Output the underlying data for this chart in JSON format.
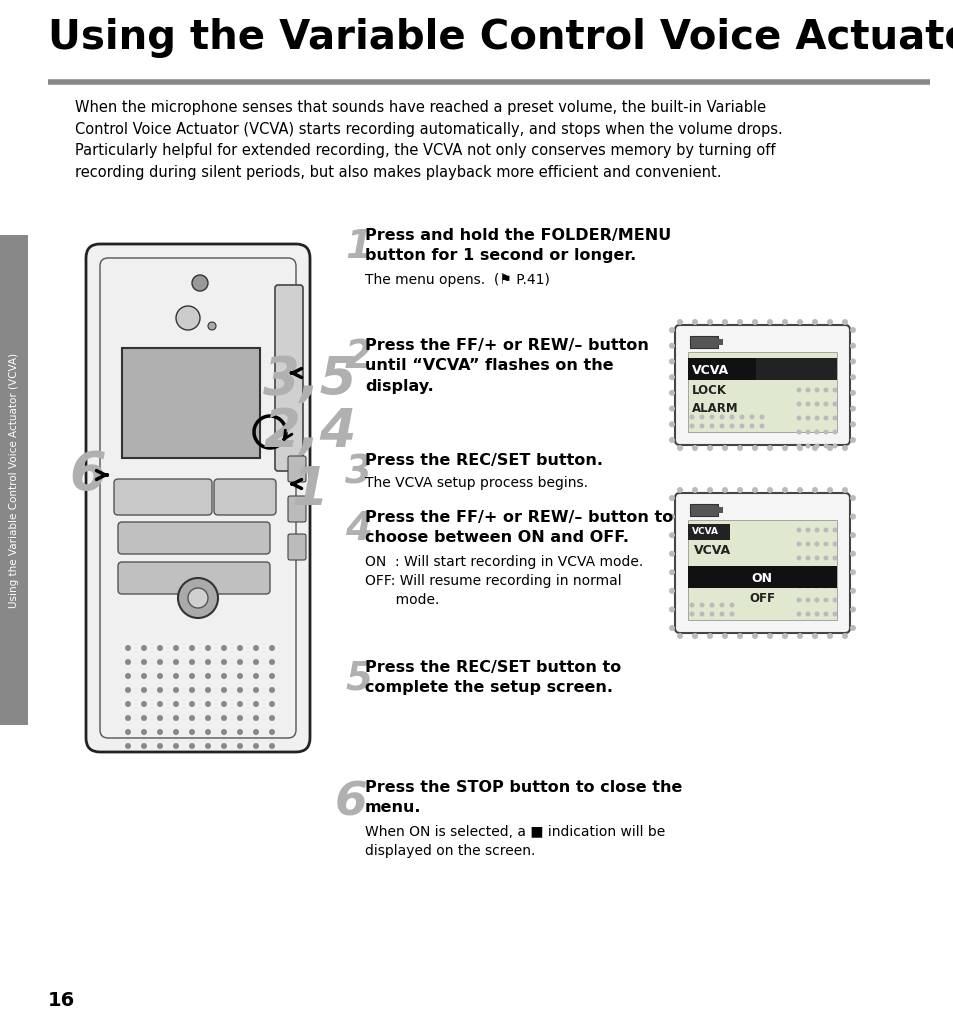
{
  "title": "Using the Variable Control Voice Actuator (VCVA)",
  "hr_color": "#888888",
  "bg_color": "#ffffff",
  "sidebar_color": "#888888",
  "sidebar_text": "Using the Variable Control Voice Actuator (VCVA)",
  "page_number": "16",
  "intro_text": "When the microphone senses that sounds have reached a preset volume, the built-in Variable\nControl Voice Actuator (VCVA) starts recording automatically, and stops when the volume drops.\nParticularly helpful for extended recording, the VCVA not only conserves memory by turning off\nrecording during silent periods, but also makes playback more efficient and convenient.",
  "step1_bold": "Press and hold the FOLDER/MENU\nbutton for 1 second or longer.",
  "step1_reg": "The menu opens.  (⚑ P.41)",
  "step2_bold": "Press the FF/+ or REW/– button\nuntil “VCVA” flashes on the\ndisplay.",
  "step3_bold": "Press the REC/SET button.",
  "step3_reg": "The VCVA setup process begins.",
  "step4_bold": "Press the FF/+ or REW/– button to\nchoose between ON and OFF.",
  "step4_reg": "ON  : Will start recording in VCVA mode.\nOFF: Will resume recording in normal\n       mode.",
  "step5_bold": "Press the REC/SET button to\ncomplete the setup screen.",
  "step6_bold": "Press the STOP button to close the\nmenu.",
  "step6_reg": "When ON is selected, a ■ indication will be\ndisplayed on the screen."
}
